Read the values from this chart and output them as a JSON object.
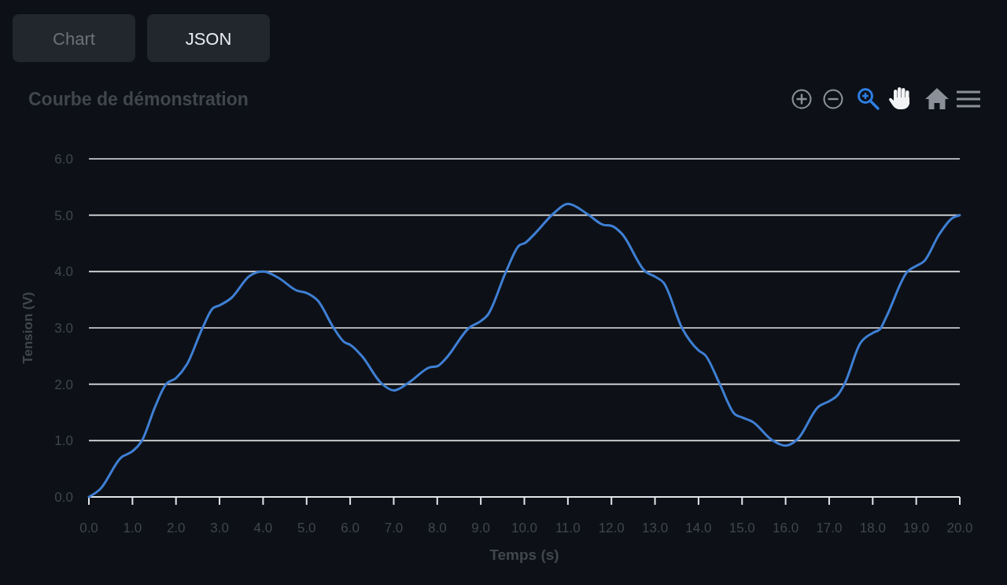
{
  "chart_data": {
    "type": "line",
    "title": "Courbe de démonstration",
    "xlabel": "Temps (s)",
    "ylabel": "Tension (V)",
    "annotations": [
      "Chart",
      "JSON"
    ],
    "x": [
      0,
      0.26,
      0.74,
      1.0,
      1.22,
      1.52,
      1.77,
      2.0,
      2.25,
      2.61,
      2.85,
      3.0,
      3.27,
      3.69,
      4.0,
      4.35,
      4.78,
      5.0,
      5.26,
      5.62,
      5.86,
      6.0,
      6.28,
      6.7,
      7.0,
      7.35,
      7.83,
      8.0,
      8.19,
      8.73,
      9.0,
      9.16,
      9.58,
      9.89,
      10.0,
      10.25,
      10.67,
      11.0,
      11.45,
      11.81,
      12.0,
      12.23,
      12.78,
      13.0,
      13.2,
      13.62,
      14.0,
      14.16,
      14.49,
      14.83,
      15.0,
      15.25,
      15.67,
      16.0,
      16.27,
      16.75,
      17.0,
      17.2,
      17.35,
      17.71,
      18.0,
      18.17,
      18.31,
      18.8,
      19.0,
      19.19,
      19.52,
      19.83,
      20.0
    ],
    "series": [
      {
        "color": "#3f7fd4",
        "values": [
          0,
          0.14,
          0.7,
          0.81,
          1.0,
          1.6,
          2.0,
          2.11,
          2.35,
          3.0,
          3.35,
          3.4,
          3.53,
          3.92,
          4.0,
          3.89,
          3.66,
          3.62,
          3.48,
          3.0,
          2.75,
          2.7,
          2.49,
          2.03,
          1.89,
          2.03,
          2.3,
          2.32,
          2.45,
          3.0,
          3.12,
          3.23,
          4.0,
          4.47,
          4.5,
          4.68,
          5.03,
          5.2,
          5.02,
          4.83,
          4.81,
          4.68,
          4.0,
          3.91,
          3.8,
          3.0,
          2.6,
          2.51,
          2.0,
          1.47,
          1.41,
          1.33,
          1.02,
          0.91,
          1.02,
          1.6,
          1.7,
          1.81,
          2.0,
          2.72,
          2.91,
          2.98,
          3.19,
          4.0,
          4.1,
          4.19,
          4.65,
          4.95,
          5.0
        ]
      }
    ],
    "xlim": [
      0,
      20
    ],
    "xticks": [
      {
        "value": 0,
        "label": "0.0"
      },
      {
        "value": 1,
        "label": "1.0"
      },
      {
        "value": 2,
        "label": "2.0"
      },
      {
        "value": 3,
        "label": "3.0"
      },
      {
        "value": 4,
        "label": "4.0"
      },
      {
        "value": 5,
        "label": "5.0"
      },
      {
        "value": 6,
        "label": "6.0"
      },
      {
        "value": 7,
        "label": "7.0"
      },
      {
        "value": 8,
        "label": "8.0"
      },
      {
        "value": 9,
        "label": "9.0"
      },
      {
        "value": 10,
        "label": "10.0"
      },
      {
        "value": 11,
        "label": "11.0"
      },
      {
        "value": 12,
        "label": "12.0"
      },
      {
        "value": 13,
        "label": "13.0"
      },
      {
        "value": 14,
        "label": "14.0"
      },
      {
        "value": 15,
        "label": "15.0"
      },
      {
        "value": 16,
        "label": "16.0"
      },
      {
        "value": 17,
        "label": "17.0"
      },
      {
        "value": 18,
        "label": "18.0"
      },
      {
        "value": 19,
        "label": "19.0"
      },
      {
        "value": 20,
        "label": "20.0"
      }
    ],
    "ylim": [
      0,
      6
    ],
    "yticks": [
      {
        "value": 0,
        "label": "0.0"
      },
      {
        "value": 1,
        "label": "1.0"
      },
      {
        "value": 2,
        "label": "2.0"
      },
      {
        "value": 3,
        "label": "3.0"
      },
      {
        "value": 4,
        "label": "4.0"
      },
      {
        "value": 5,
        "label": "5.0"
      },
      {
        "value": 6,
        "label": "6.0"
      }
    ],
    "grid": "y"
  }
}
